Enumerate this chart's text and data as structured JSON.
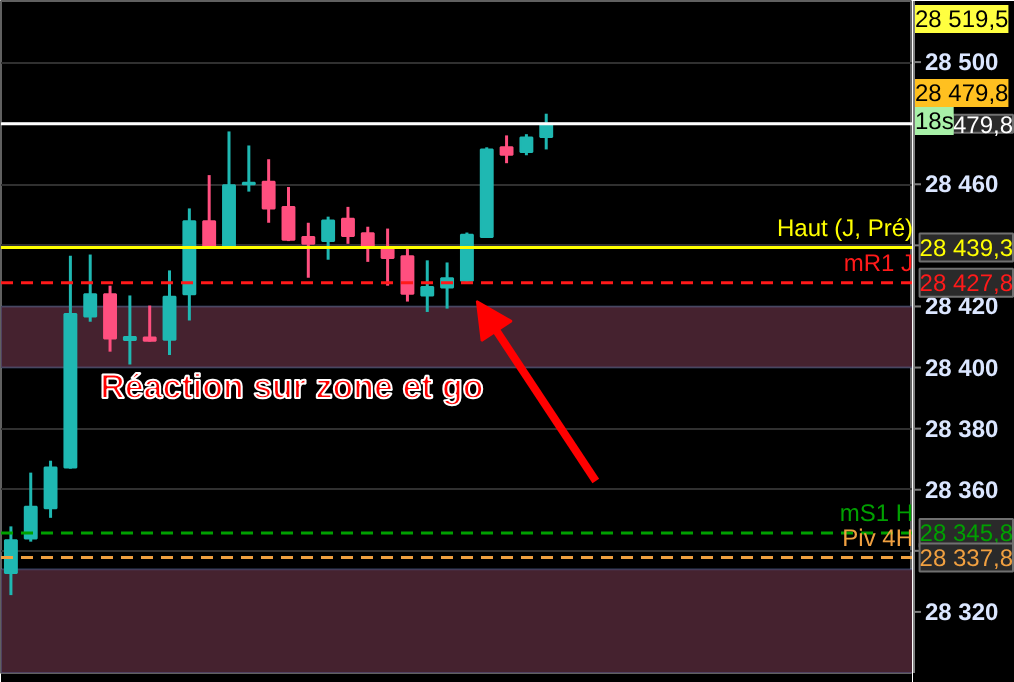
{
  "chart_data": {
    "type": "candlestick",
    "categories": [
      null,
      null,
      null,
      null,
      null,
      null,
      null,
      null,
      null,
      null,
      null,
      null,
      null,
      null,
      null,
      null,
      null,
      null,
      null,
      null,
      null,
      null,
      null,
      null,
      null,
      null,
      null,
      null,
      null,
      null,
      null,
      null,
      null,
      null,
      null,
      null,
      null,
      null,
      null,
      null,
      null,
      null,
      null,
      null,
      null,
      null
    ],
    "ohlc": [
      [
        28332.7,
        28348,
        28325.5,
        28343.5
      ],
      [
        28344,
        28365.6,
        28343,
        28354.4
      ],
      [
        28353.9,
        28369.5,
        28350.8,
        28367.3
      ],
      [
        28367.3,
        28436.6,
        28366.9,
        28417.5
      ],
      [
        28416.7,
        28437,
        28415,
        28424
      ],
      [
        28424,
        28426.8,
        28405.2,
        28409.5
      ],
      [
        28409,
        28423.6,
        28401,
        28410
      ],
      [
        28409.8,
        28420.3,
        28408.5,
        28408.8
      ],
      [
        28409.1,
        28431.8,
        28404.1,
        28423.2
      ],
      [
        28424,
        28452.1,
        28415.4,
        28447.9
      ],
      [
        28447.9,
        28463,
        28439,
        28439.6
      ],
      [
        28439.6,
        28477.3,
        28439,
        28459.7
      ],
      [
        28460,
        28472.7,
        28457.6,
        28460.5
      ],
      [
        28460.8,
        28468.2,
        28447.4,
        28452.1
      ],
      [
        28452.6,
        28459.1,
        28441.4,
        28441.8
      ],
      [
        28442.7,
        28447.4,
        28429.4,
        28440.5
      ],
      [
        28441.4,
        28449.4,
        28435.3,
        28448.1
      ],
      [
        28448.7,
        28452.6,
        28440.5,
        28443.1
      ],
      [
        28444,
        28446.1,
        28434.6,
        28439.6
      ],
      [
        28438.8,
        28445.5,
        28426.8,
        28435.9
      ],
      [
        28436.4,
        28439.2,
        28421.6,
        28424.2
      ],
      [
        28423.6,
        28435.1,
        28418.2,
        28426.4
      ],
      [
        28426.2,
        28434.4,
        28419.3,
        28429.2
      ],
      [
        28428.4,
        28444.2,
        28428,
        28443.5
      ],
      [
        28442.7,
        28472.1,
        28442.5,
        28471.4
      ],
      [
        28472.1,
        28476,
        28466.9,
        28469.7
      ],
      [
        28470.6,
        28476.4,
        28469.5,
        28475.3
      ],
      [
        28475.5,
        28483.1,
        28471.4,
        28479.8
      ],
      null,
      null,
      null,
      null,
      null,
      null,
      null,
      null,
      null,
      null,
      null,
      null,
      null,
      null,
      null,
      null,
      null,
      null
    ],
    "colors": [
      "#1fb8b2",
      "#1fb8b2",
      "#1fb8b2",
      "#1fb8b2",
      "#1fb8b2",
      "#ff4f7f",
      "#1fb8b2",
      "#ff4f7f",
      "#1fb8b2",
      "#1fb8b2",
      "#ff4f7f",
      "#1fb8b2",
      "#1fb8b2",
      "#ff4f7f",
      "#ff4f7f",
      "#ff4f7f",
      "#1fb8b2",
      "#ff4f7f",
      "#ff4f7f",
      "#ff4f7f",
      "#ff4f7f",
      "#1fb8b2",
      "#1fb8b2",
      "#1fb8b2",
      "#1fb8b2",
      "#ff4f7f",
      "#1fb8b2",
      "#1fb8b2",
      null,
      null,
      null,
      null,
      null,
      null,
      null,
      null,
      null,
      null,
      null,
      null,
      null,
      null,
      null,
      null,
      null,
      null
    ],
    "ylim": [
      28300,
      28520
    ],
    "yticks": [
      {
        "value": 28320,
        "label": "28 320"
      },
      {
        "value": 28340,
        "label": null
      },
      {
        "value": 28360,
        "label": "28 360"
      },
      {
        "value": 28380,
        "label": "28 380"
      },
      {
        "value": 28400,
        "label": "28 400"
      },
      {
        "value": 28420,
        "label": "28 420"
      },
      {
        "value": 28440,
        "label": null
      },
      {
        "value": 28460,
        "label": "28 460"
      },
      {
        "value": 28480,
        "label": null
      },
      {
        "value": 28500,
        "label": "28 500"
      }
    ],
    "grid": "y",
    "tick_labels": "y",
    "ref_lines": [
      {
        "axis": "y",
        "value": 28479.8,
        "color": "#ffffff",
        "line_style": "solid"
      },
      {
        "axis": "y",
        "value": 28439.3,
        "label": "Haut (J, Pré)",
        "color": "#ffff00",
        "line_style": "solid"
      },
      {
        "axis": "y",
        "value": 28427.8,
        "label": "mR1 J",
        "color": "#ff1a1a",
        "line_style": "dashed"
      },
      {
        "axis": "y",
        "value": 28345.8,
        "label": "mS1 H",
        "color": "#00a000",
        "line_style": "dashed"
      },
      {
        "axis": "y",
        "value": 28337.8,
        "label": "Piv 4H",
        "color": "#f0a040",
        "line_style": "dashed"
      }
    ],
    "bands": [
      {
        "axis": "y",
        "from": 28400,
        "to": 28420,
        "color": "#45222f"
      },
      {
        "axis": "y",
        "from": 28300,
        "to": 28334,
        "color": "#45222f"
      }
    ],
    "annotations": [
      "Réaction sur zone et go",
      "28 519,5",
      "28 479,8",
      "18s",
      "479,8",
      "28 439,3",
      "28 427,8",
      "28 345,8",
      "28 337,8"
    ]
  }
}
